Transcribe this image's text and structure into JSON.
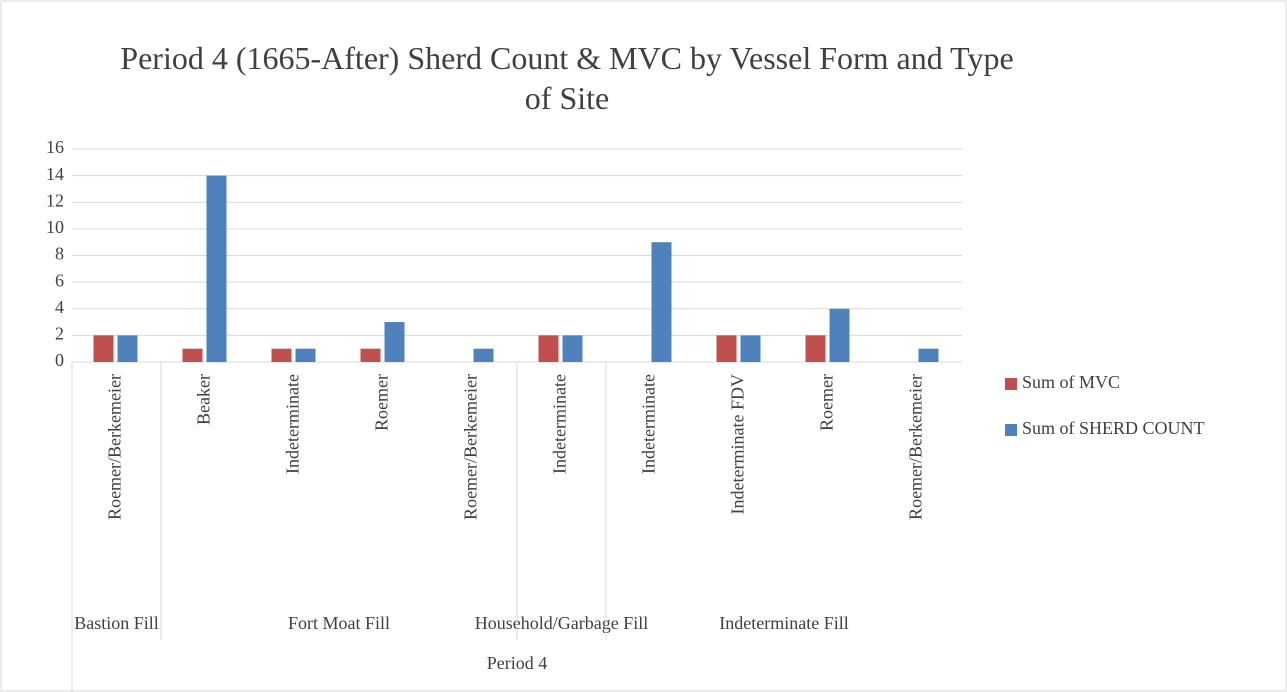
{
  "chart_data": {
    "type": "bar",
    "title": "Period 4 (1665-After) Sherd Count & MVC by Vessel Form and Type of Site",
    "categories": [
      "Roemer/Berkemeier",
      "Beaker",
      "Indeterminate",
      "Roemer",
      "Roemer/Berkemeier",
      "Indeterminate",
      "Indeterminate",
      "Indeterminate FDV",
      "Roemer",
      "Roemer/Berkemeier"
    ],
    "category_groups": [
      {
        "label": "Bastion Fill",
        "size": 1
      },
      {
        "label": "Fort Moat Fill",
        "size": 4
      },
      {
        "label": "Household/Garbage Fill",
        "size": 1
      },
      {
        "label": "Indeterminate Fill",
        "size": 4
      }
    ],
    "category_supergroup": "Period 4",
    "series": [
      {
        "name": "Sum of MVC",
        "color": "#c0504d",
        "values": [
          2,
          1,
          1,
          1,
          null,
          2,
          null,
          2,
          2,
          null
        ]
      },
      {
        "name": "Sum of SHERD COUNT",
        "color": "#4f81bd",
        "values": [
          2,
          14,
          1,
          3,
          1,
          2,
          9,
          2,
          4,
          1
        ]
      }
    ],
    "ylim": [
      0,
      16
    ],
    "yticks": [
      0,
      2,
      4,
      6,
      8,
      10,
      12,
      14,
      16
    ],
    "grid": true,
    "legend": "right"
  }
}
